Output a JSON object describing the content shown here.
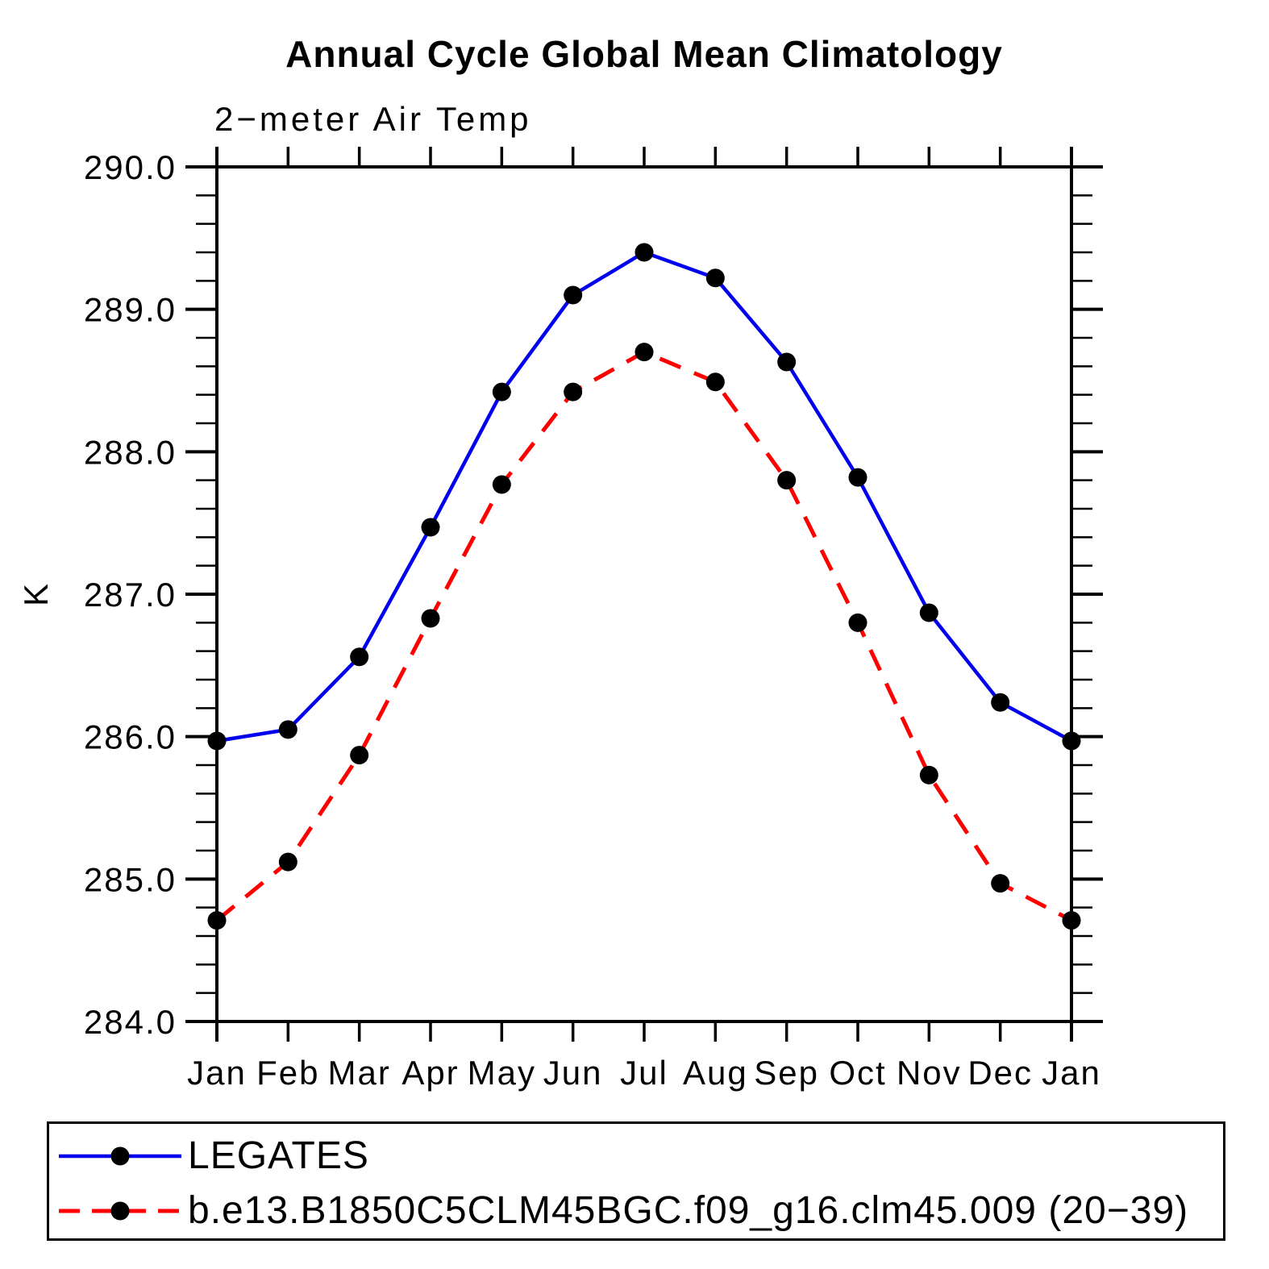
{
  "header": {
    "title": "Annual Cycle Global Mean Climatology",
    "subtitle": "2−meter Air Temp"
  },
  "chart_data": {
    "type": "line",
    "title": "Annual Cycle Global Mean Climatology",
    "subtitle": "2−meter Air Temp",
    "xlabel": "",
    "ylabel": "K",
    "categories": [
      "Jan",
      "Feb",
      "Mar",
      "Apr",
      "May",
      "Jun",
      "Jul",
      "Aug",
      "Sep",
      "Oct",
      "Nov",
      "Dec",
      "Jan"
    ],
    "series": [
      {
        "name": "LEGATES",
        "line_style": "solid",
        "color": "#0000ee",
        "marker": "filled-circle",
        "marker_color": "#000000",
        "values": [
          285.97,
          286.05,
          286.56,
          287.47,
          288.42,
          289.1,
          289.4,
          289.22,
          288.63,
          287.82,
          286.87,
          286.24,
          285.97
        ]
      },
      {
        "name": "b.e13.B1850C5CLM45BGC.f09_g16.clm45.009 (20−39)",
        "line_style": "dashed",
        "color": "#ff0000",
        "marker": "filled-circle",
        "marker_color": "#000000",
        "values": [
          284.71,
          285.12,
          285.87,
          286.83,
          287.77,
          288.42,
          288.7,
          288.49,
          287.8,
          286.8,
          285.73,
          284.97,
          284.71
        ]
      }
    ],
    "ylim": [
      284.0,
      290.0
    ],
    "ytick_major": 1.0,
    "ytick_minor": 0.2,
    "y_tick_labels": [
      "284.0",
      "285.0",
      "286.0",
      "287.0",
      "288.0",
      "289.0",
      "290.0"
    ],
    "grid": false,
    "legend_position": "bottom",
    "axis_color": "#000000"
  },
  "legend": {
    "entries": [
      {
        "label": "LEGATES"
      },
      {
        "label": "b.e13.B1850C5CLM45BGC.f09_g16.clm45.009 (20−39)"
      }
    ]
  }
}
